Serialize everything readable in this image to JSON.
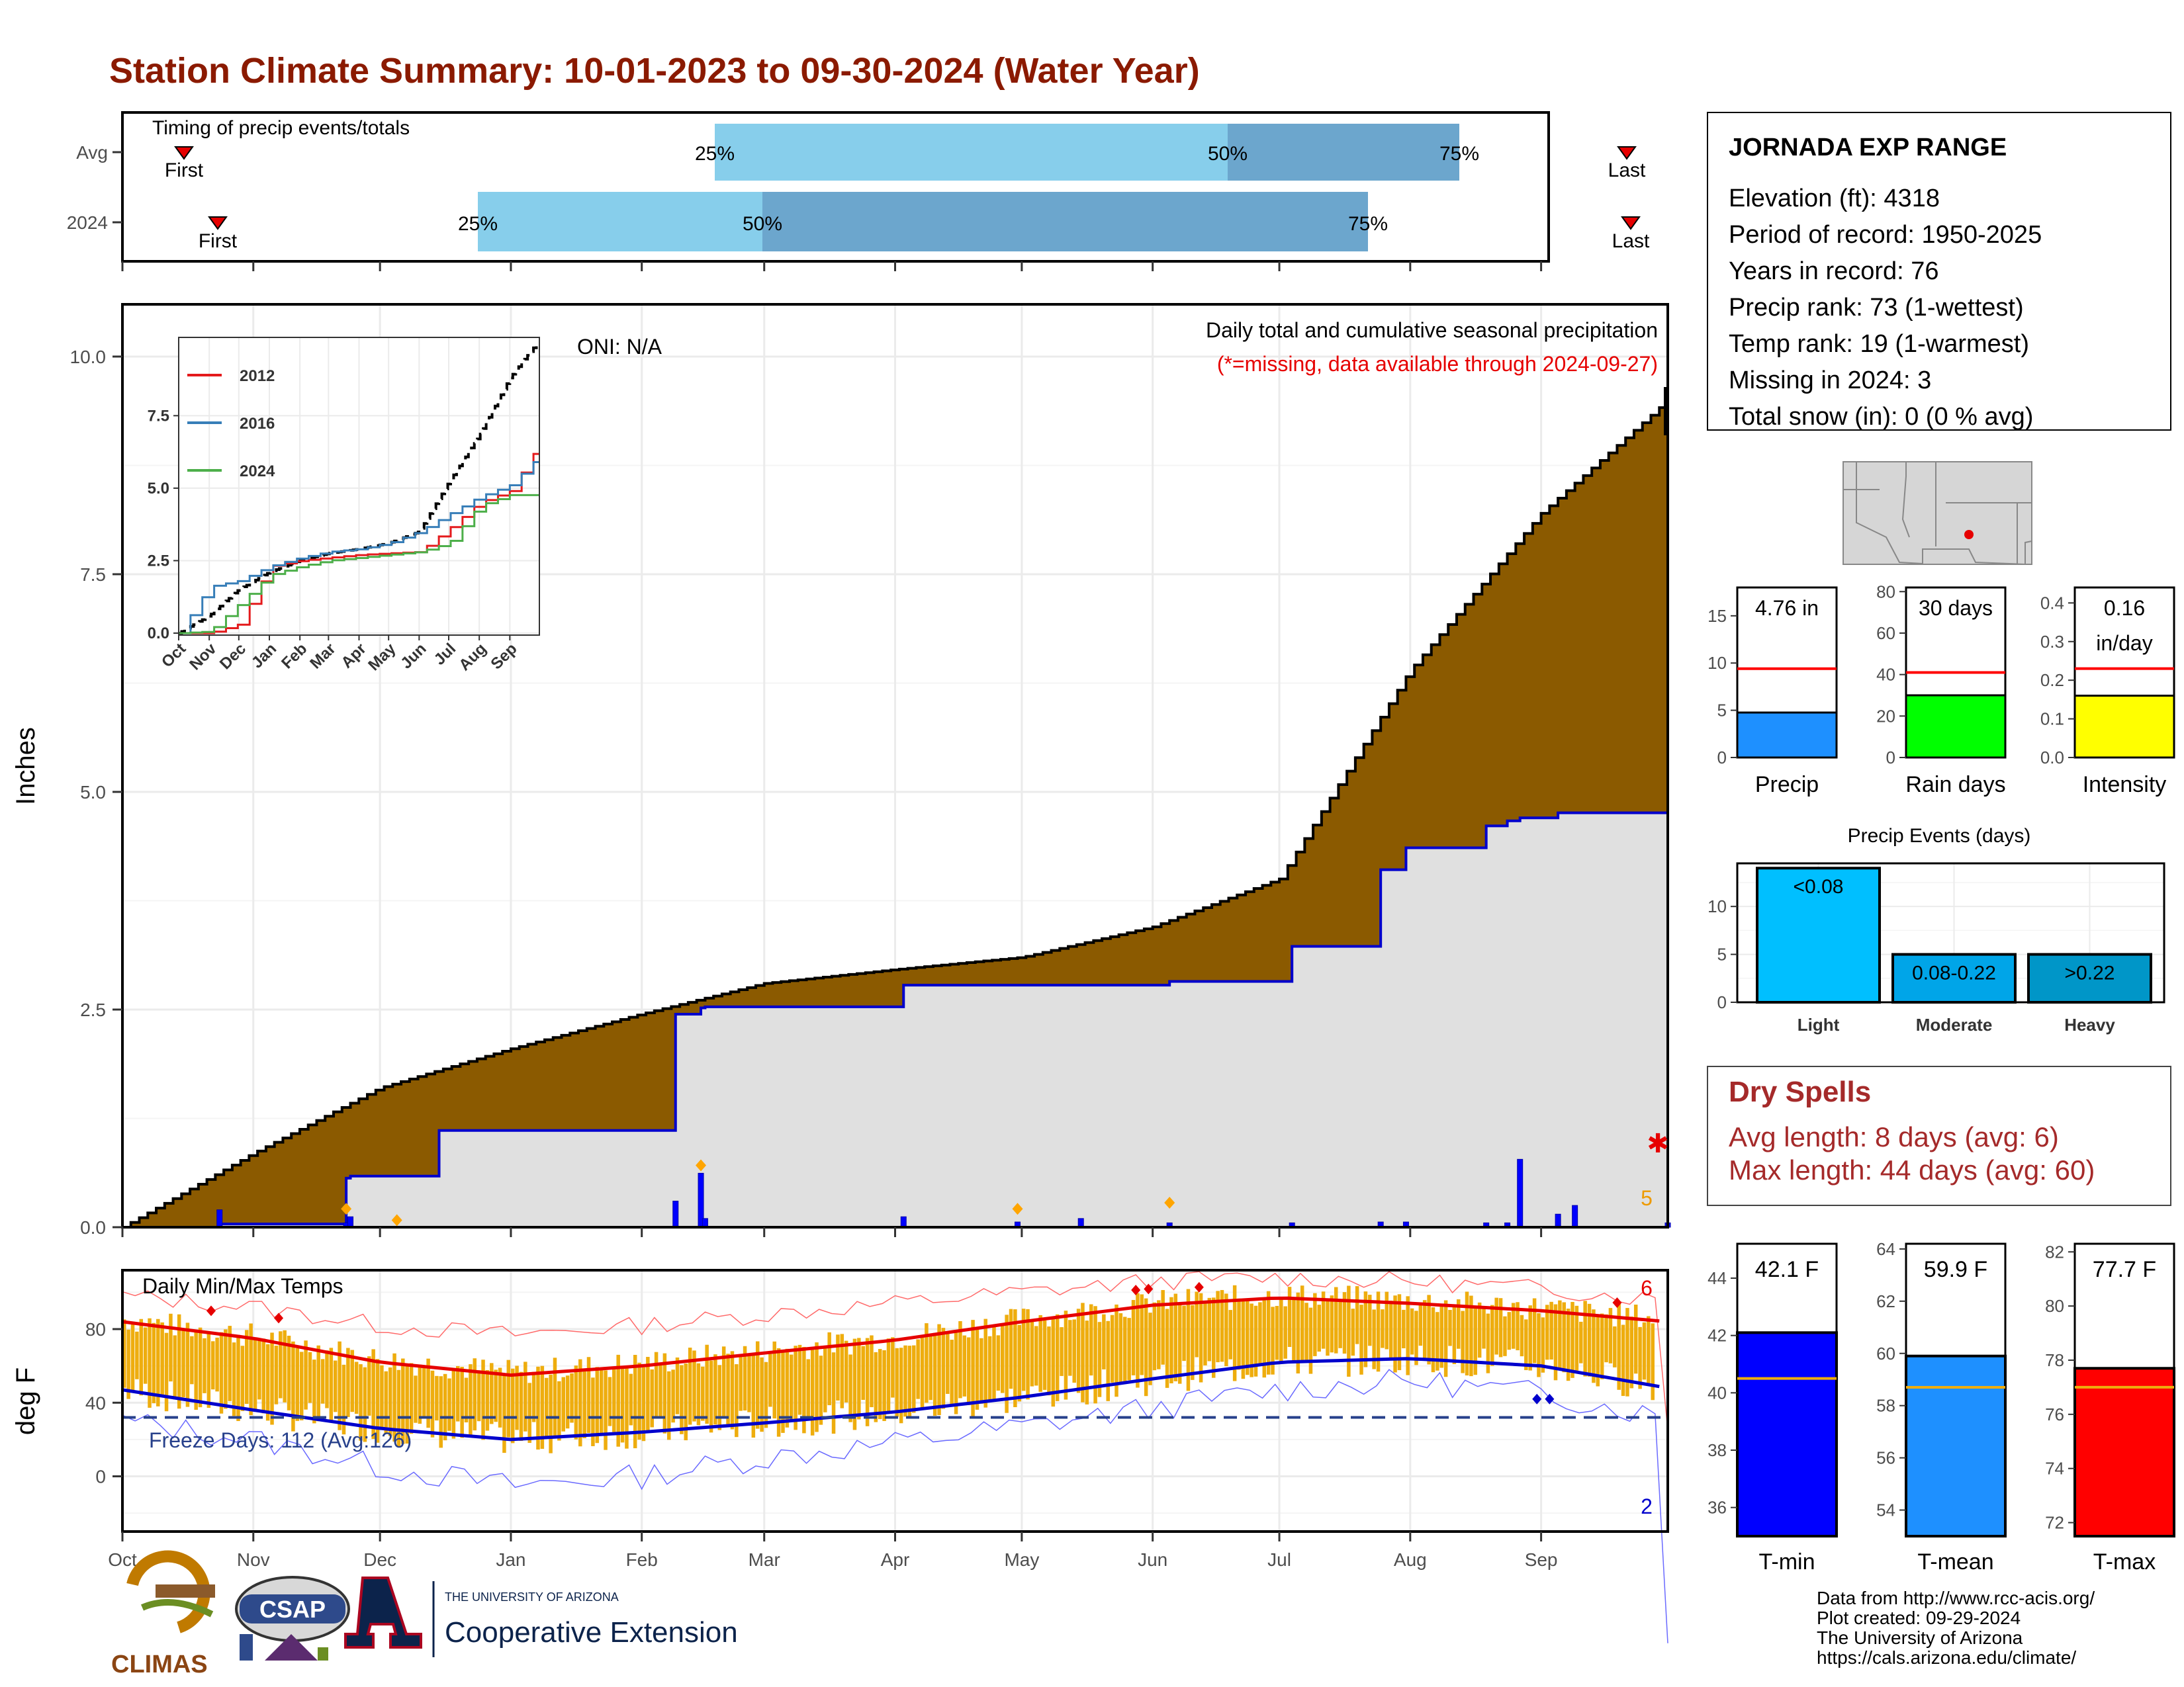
{
  "title": "Station Climate Summary: 10-01-2023 to 09-30-2024 (Water Year)",
  "colors": {
    "title": "#8B1A00",
    "precip_fill": "#8B5A00",
    "cur_fill": "#E0E0E0",
    "cur_line": "#0000CC",
    "timing_light": "#87CEEB",
    "timing_dark": "#6CA6CD",
    "red": "#E60000",
    "blue": "#0000CC",
    "gold": "#EEAD0E",
    "dryspell": "#A52A2A"
  },
  "timing": {
    "title": "Timing of precip events/totals",
    "rows": [
      {
        "label": "Avg",
        "first": "First",
        "last": "Last",
        "p25": "25%",
        "p50": "50%",
        "p75": "75%"
      },
      {
        "label": "2024",
        "first": "First",
        "last": "Last",
        "p25": "25%",
        "p50": "50%",
        "p75": "75%"
      }
    ]
  },
  "precip_panel": {
    "ylabel": "Inches",
    "oni": "ONI: N/A",
    "subtitle": "Daily total and cumulative seasonal precipitation",
    "missing_note": "(*=missing, data available through 2024-09-27)",
    "missing_count": "5",
    "y_ticks": [
      "0.0",
      "2.5",
      "5.0",
      "7.5",
      "10.0"
    ],
    "x_ticks": [
      "Oct",
      "Nov",
      "Dec",
      "Jan",
      "Feb",
      "Mar",
      "Apr",
      "May",
      "Jun",
      "Jul",
      "Aug",
      "Sep"
    ]
  },
  "inset": {
    "y_ticks": [
      "0.0",
      "2.5",
      "5.0",
      "7.5"
    ],
    "x_ticks": [
      "Oct",
      "Nov",
      "Dec",
      "Jan",
      "Feb",
      "Mar",
      "Apr",
      "May",
      "Jun",
      "Jul",
      "Aug",
      "Sep"
    ],
    "legend": [
      {
        "name": "2012",
        "color": "#E41A1C"
      },
      {
        "name": "2016",
        "color": "#377EB8"
      },
      {
        "name": "2024",
        "color": "#4DAF4A"
      }
    ]
  },
  "temp_panel": {
    "ylabel": "deg F",
    "title": "Daily Min/Max Temps",
    "freeze": "Freeze Days: 112 (Avg:126)",
    "max_count": "6",
    "min_count": "2",
    "y_ticks": [
      "0",
      "40",
      "80"
    ],
    "x_ticks": [
      "Oct",
      "Nov",
      "Dec",
      "Jan",
      "Feb",
      "Mar",
      "Apr",
      "May",
      "Jun",
      "Jul",
      "Aug",
      "Sep"
    ]
  },
  "station": {
    "name": "JORNADA EXP RANGE",
    "lines": [
      "Elevation (ft): 4318",
      "Period of record: 1950-2025",
      "Years in record: 76",
      "Precip rank: 73 (1-wettest)",
      "Temp rank: 19 (1-warmest)",
      "Missing in 2024: 3",
      "Total snow (in): 0 (0 % avg)"
    ]
  },
  "mini_bars": [
    {
      "label": "Precip",
      "value_text": "4.76 in",
      "value_text2": "",
      "value": 4.76,
      "avg": 9.4,
      "ymax": 18,
      "ticks": [
        "0",
        "5",
        "10",
        "15"
      ],
      "tick_vals": [
        0,
        5,
        10,
        15
      ],
      "color": "#1E90FF"
    },
    {
      "label": "Rain days",
      "value_text": "30 days",
      "value_text2": "",
      "value": 30,
      "avg": 41,
      "ymax": 82,
      "ticks": [
        "0",
        "20",
        "40",
        "60",
        "80"
      ],
      "tick_vals": [
        0,
        20,
        40,
        60,
        80
      ],
      "color": "#00FF00"
    },
    {
      "label": "Intensity",
      "value_text": "0.16",
      "value_text2": "in/day",
      "value": 0.16,
      "avg": 0.23,
      "ymax": 0.44,
      "ticks": [
        "0.0",
        "0.1",
        "0.2",
        "0.3",
        "0.4"
      ],
      "tick_vals": [
        0,
        0.1,
        0.2,
        0.3,
        0.4
      ],
      "color": "#FFFF00"
    }
  ],
  "precip_events": {
    "title": "Precip Events (days)",
    "y_ticks": [
      "0",
      "5",
      "10"
    ],
    "bars": [
      {
        "label": "Light",
        "text": "<0.08",
        "value": 14,
        "color": "#00BFFF"
      },
      {
        "label": "Moderate",
        "text": "0.08-0.22",
        "value": 5,
        "color": "#00A5E8"
      },
      {
        "label": "Heavy",
        "text": ">0.22",
        "value": 5,
        "color": "#0096C8"
      }
    ]
  },
  "dry_spells": {
    "title": "Dry Spells",
    "avg": "Avg length: 8 days (avg: 6)",
    "max": "Max length: 44 days (avg: 60)"
  },
  "temp_bars": [
    {
      "label": "T-min",
      "value_text": "42.1 F",
      "value": 42.1,
      "avg": 40.5,
      "ymin": 35,
      "ymax": 45.2,
      "ticks": [
        "36",
        "38",
        "40",
        "42",
        "44"
      ],
      "tick_vals": [
        36,
        38,
        40,
        42,
        44
      ],
      "color": "#0000FF"
    },
    {
      "label": "T-mean",
      "value_text": "59.9 F",
      "value": 59.9,
      "avg": 58.7,
      "ymin": 53,
      "ymax": 64.2,
      "ticks": [
        "54",
        "56",
        "58",
        "60",
        "62",
        "64"
      ],
      "tick_vals": [
        54,
        56,
        58,
        60,
        62,
        64
      ],
      "color": "#1E90FF"
    },
    {
      "label": "T-max",
      "value_text": "77.7 F",
      "value": 77.7,
      "avg": 77.0,
      "ymin": 71.5,
      "ymax": 82.3,
      "ticks": [
        "72",
        "74",
        "76",
        "78",
        "80",
        "82"
      ],
      "tick_vals": [
        72,
        74,
        76,
        78,
        80,
        82
      ],
      "color": "#FF0000"
    }
  ],
  "footer": {
    "lines": [
      "Data from http://www.rcc-acis.org/",
      "Plot created: 09-29-2024",
      "The University of Arizona",
      "https://cals.arizona.edu/climate/"
    ],
    "climas": "CLIMAS",
    "csap": "CSAP",
    "ua_small": "THE UNIVERSITY OF ARIZONA",
    "ua_big": "Cooperative Extension"
  },
  "chart_data": [
    {
      "type": "area",
      "title": "Daily total and cumulative seasonal precipitation",
      "ylabel": "Inches",
      "ylim": [
        0,
        10.6
      ],
      "x": [
        "Oct",
        "Nov",
        "Dec",
        "Jan",
        "Feb",
        "Mar",
        "Apr",
        "May",
        "Jun",
        "Jul",
        "Aug",
        "Sep",
        "Sep-30"
      ],
      "series": [
        {
          "name": "Avg cumulative",
          "values": [
            0,
            0.85,
            1.6,
            2.05,
            2.45,
            2.8,
            2.96,
            3.1,
            3.45,
            4.0,
            6.4,
            8.2,
            9.5
          ]
        },
        {
          "name": "2024 cumulative",
          "values": [
            0,
            0.05,
            0.75,
            1.55,
            2.35,
            2.7,
            2.78,
            2.78,
            2.78,
            3.1,
            4.4,
            4.76,
            4.76
          ]
        }
      ]
    },
    {
      "type": "bar",
      "title": "",
      "ylabel": "Inches",
      "x_day_of_water_year": [
        23,
        53,
        54,
        131,
        137,
        138,
        185,
        212,
        227,
        248,
        277,
        298,
        304,
        323,
        328,
        331,
        340,
        344,
        366
      ],
      "values": [
        0.2,
        0.05,
        0.12,
        0.3,
        0.62,
        0.1,
        0.12,
        0.06,
        0.1,
        0.05,
        0.05,
        0.06,
        0.06,
        0.05,
        0.05,
        0.78,
        0.15,
        0.25,
        0.05
      ]
    },
    {
      "type": "line",
      "title": "",
      "ylim": [
        0,
        10.2
      ],
      "x": [
        "Oct",
        "Nov",
        "Dec",
        "Jan",
        "Feb",
        "Mar",
        "Apr",
        "May",
        "Jun",
        "Jul",
        "Aug",
        "Sep",
        "Sep-30"
      ],
      "series": [
        {
          "name": "",
          "values": [
            0,
            0.6,
            1.5,
            2.1,
            2.5,
            2.75,
            2.9,
            3.1,
            3.5,
            5.2,
            6.8,
            8.8,
            10.1
          ]
        },
        {
          "name": "2012",
          "values": [
            0,
            0,
            0.3,
            2.3,
            2.5,
            2.6,
            2.7,
            2.75,
            2.8,
            3.6,
            4.5,
            4.9,
            6.5
          ]
        },
        {
          "name": "2016",
          "values": [
            0,
            1.6,
            1.8,
            2.3,
            2.6,
            2.8,
            2.9,
            3.1,
            3.5,
            4.1,
            4.7,
            5.1,
            6.1
          ]
        },
        {
          "name": "2024",
          "values": [
            0,
            0.05,
            1.0,
            2.0,
            2.3,
            2.5,
            2.6,
            2.7,
            2.8,
            3.1,
            4.4,
            4.76,
            4.76
          ]
        }
      ]
    },
    {
      "type": "line",
      "title": "Daily Min/Max Temps",
      "ylabel": "deg F",
      "ylim": [
        -30,
        112
      ],
      "x": [
        "Oct",
        "Nov",
        "Dec",
        "Jan",
        "Feb",
        "Mar",
        "Apr",
        "May",
        "Jun",
        "Jul",
        "Aug",
        "Sep",
        "Sep-30"
      ],
      "series": [
        {
          "name": "",
          "values": [
            84,
            75,
            62,
            55,
            60,
            67,
            74,
            84,
            93,
            97,
            94,
            90,
            84
          ]
        },
        {
          "name": "",
          "values": [
            47,
            36,
            26,
            20,
            24,
            29,
            35,
            43,
            53,
            62,
            64,
            60,
            48
          ]
        },
        {
          "name": "",
          "values": [
            98,
            92,
            82,
            77,
            82,
            88,
            94,
            100,
            106,
            108,
            106,
            102,
            96
          ]
        },
        {
          "name": "",
          "values": [
            30,
            20,
            5,
            -5,
            0,
            10,
            18,
            27,
            37,
            47,
            52,
            45,
            32
          ]
        }
      ],
      "freeze_line": 32
    }
  ]
}
